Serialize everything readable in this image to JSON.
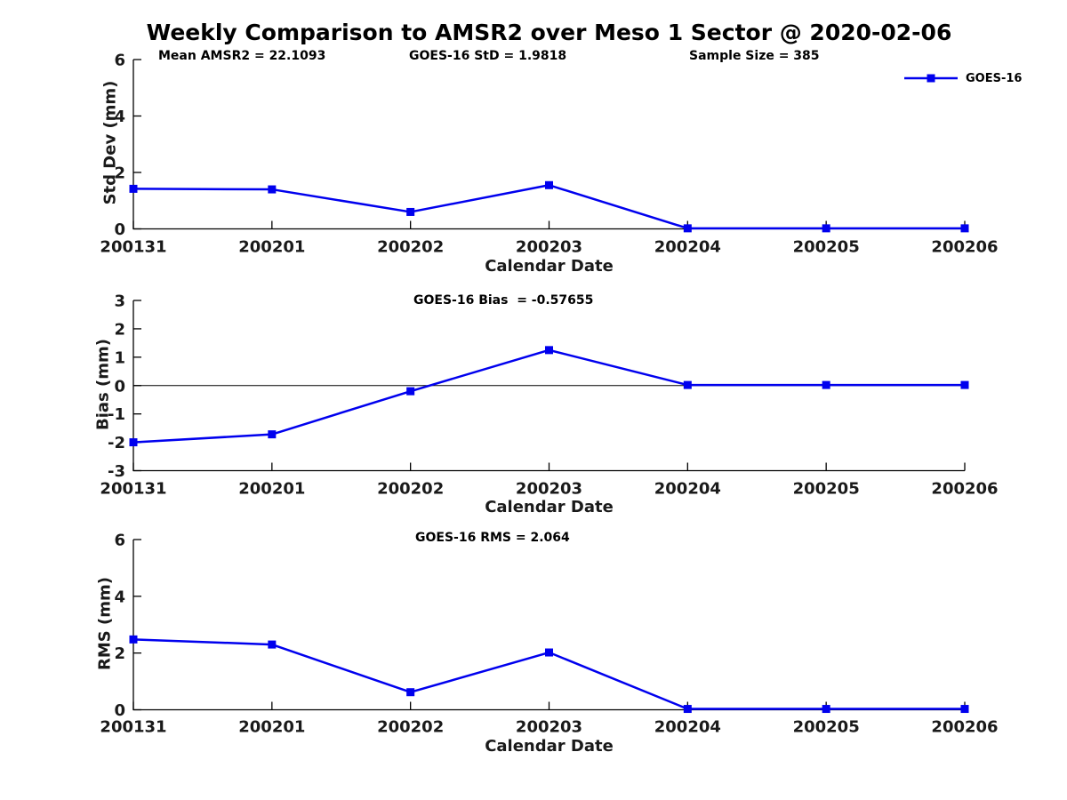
{
  "title": "Weekly Comparison to AMSR2 over Meso 1 Sector @ 2020-02-06",
  "header_annotations": [
    "Mean AMSR2 = 22.1093",
    "GOES-16 StD = 1.9818",
    "Sample Size = 385"
  ],
  "legend": {
    "label": "GOES-16",
    "position": "top-right"
  },
  "colors": {
    "line": "#0000EE",
    "axis": "#000000",
    "text": "#1a1a1a",
    "background": "#ffffff"
  },
  "chart_data": [
    {
      "type": "line",
      "name": "stddev",
      "categories": [
        "200131",
        "200201",
        "200202",
        "200203",
        "200204",
        "200205",
        "200206"
      ],
      "series": [
        {
          "name": "GOES-16",
          "values": [
            1.42,
            1.4,
            0.6,
            1.55,
            0.02,
            0.02,
            0.02
          ]
        }
      ],
      "xlabel": "Calendar Date",
      "ylabel": "Std Dev (mm)",
      "ylim": [
        0,
        6
      ],
      "yticks": [
        0,
        2,
        4,
        6
      ],
      "annotation": "",
      "zero_line": false,
      "grid": false,
      "marker": "square"
    },
    {
      "type": "line",
      "name": "bias",
      "categories": [
        "200131",
        "200201",
        "200202",
        "200203",
        "200204",
        "200205",
        "200206"
      ],
      "series": [
        {
          "name": "GOES-16",
          "values": [
            -2.0,
            -1.72,
            -0.2,
            1.25,
            0.02,
            0.02,
            0.02
          ]
        }
      ],
      "xlabel": "Calendar Date",
      "ylabel": "Bias (mm)",
      "ylim": [
        -3,
        3
      ],
      "yticks": [
        3,
        2,
        1,
        0,
        -1,
        -2,
        -3
      ],
      "annotation": "GOES-16 Bias  = -0.57655",
      "zero_line": true,
      "grid": false,
      "marker": "square"
    },
    {
      "type": "line",
      "name": "rms",
      "categories": [
        "200131",
        "200201",
        "200202",
        "200203",
        "200204",
        "200205",
        "200206"
      ],
      "series": [
        {
          "name": "GOES-16",
          "values": [
            2.48,
            2.3,
            0.62,
            2.02,
            0.03,
            0.03,
            0.03
          ]
        }
      ],
      "xlabel": "Calendar Date",
      "ylabel": "RMS (mm)",
      "ylim": [
        0,
        6
      ],
      "yticks": [
        0,
        2,
        4,
        6
      ],
      "annotation": "GOES-16 RMS = 2.064",
      "zero_line": false,
      "grid": false,
      "marker": "square"
    }
  ]
}
